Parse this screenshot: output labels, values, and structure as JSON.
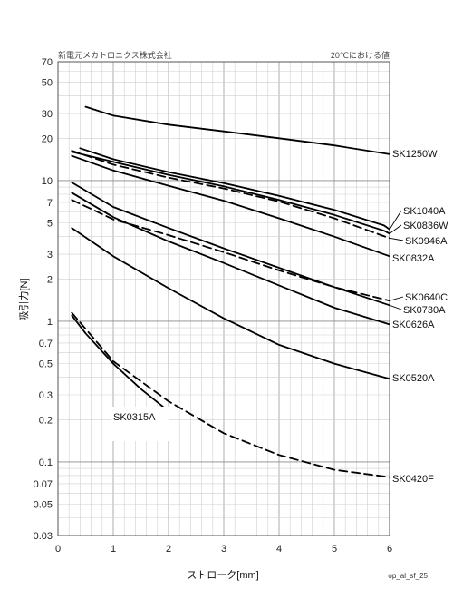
{
  "chart_data": {
    "type": "line",
    "title": "",
    "company": "新電元メカトロニクス株式会社",
    "condition": "20℃における値",
    "xlabel": "ストローク[mm]",
    "ylabel": "吸引力[N]",
    "figure_code": "op_al_sf_25",
    "xlim": [
      0,
      6
    ],
    "ylim": [
      0.03,
      70
    ],
    "y_scale": "log",
    "grid": true,
    "x_ticks": [
      0,
      1,
      2,
      3,
      4,
      5,
      6
    ],
    "y_ticks": [
      70,
      50,
      30,
      20,
      10,
      7,
      5,
      3,
      2,
      1,
      0.7,
      0.5,
      0.3,
      0.2,
      0.1,
      0.07,
      0.05,
      0.03
    ],
    "series": [
      {
        "name": "SK1250W",
        "dash": false,
        "x": [
          0.5,
          1,
          2,
          3,
          4,
          5,
          6
        ],
        "y": [
          33.5,
          29,
          25,
          22.4,
          20,
          17.8,
          15.4
        ]
      },
      {
        "name": "SK1040A",
        "dash": false,
        "x": [
          0.4,
          1,
          2,
          3,
          4,
          5,
          5.9,
          6
        ],
        "y": [
          17,
          14.2,
          11.5,
          9.6,
          7.8,
          6.2,
          4.8,
          4.5
        ]
      },
      {
        "name": "SK0836W",
        "dash": false,
        "x": [
          0.25,
          1,
          2,
          3,
          4,
          5,
          5.9,
          6
        ],
        "y": [
          16,
          13.6,
          11,
          9.1,
          7.3,
          5.7,
          4.4,
          4.2
        ]
      },
      {
        "name": "SK0946A",
        "dash": true,
        "x": [
          0.25,
          1,
          2,
          3,
          4,
          5,
          6
        ],
        "y": [
          16.3,
          13,
          10.5,
          8.8,
          7.1,
          5.4,
          3.9
        ]
      },
      {
        "name": "SK0832A",
        "dash": false,
        "x": [
          0.25,
          1,
          2,
          3,
          4,
          5,
          6
        ],
        "y": [
          15,
          11.8,
          9.2,
          7.2,
          5.4,
          4,
          2.9
        ]
      },
      {
        "name": "SK0640C",
        "dash": true,
        "x": [
          0.25,
          1,
          2,
          3,
          4,
          5,
          6
        ],
        "y": [
          7.3,
          5.3,
          4.1,
          3.1,
          2.3,
          1.75,
          1.4
        ]
      },
      {
        "name": "SK0730A",
        "dash": false,
        "x": [
          0.25,
          1,
          2,
          3,
          4,
          5,
          6
        ],
        "y": [
          9.7,
          6.5,
          4.6,
          3.3,
          2.4,
          1.75,
          1.3
        ]
      },
      {
        "name": "SK0626A",
        "dash": false,
        "x": [
          0.25,
          1,
          2,
          3,
          4,
          5,
          6
        ],
        "y": [
          8.2,
          5.5,
          3.7,
          2.6,
          1.8,
          1.25,
          0.95
        ]
      },
      {
        "name": "SK0520A",
        "dash": false,
        "x": [
          0.25,
          1,
          2,
          3,
          4,
          5,
          6
        ],
        "y": [
          4.6,
          2.9,
          1.72,
          1.05,
          0.68,
          0.5,
          0.39
        ]
      },
      {
        "name": "SK0420F",
        "dash": true,
        "x": [
          0.25,
          1,
          2,
          3,
          4,
          5,
          6
        ],
        "y": [
          1.15,
          0.52,
          0.27,
          0.16,
          0.112,
          0.088,
          0.078
        ]
      },
      {
        "name": "SK0315A",
        "dash": false,
        "x": [
          0.25,
          0.5,
          1,
          1.5,
          2
        ],
        "y": [
          1.1,
          0.82,
          0.5,
          0.33,
          0.23
        ]
      }
    ]
  }
}
